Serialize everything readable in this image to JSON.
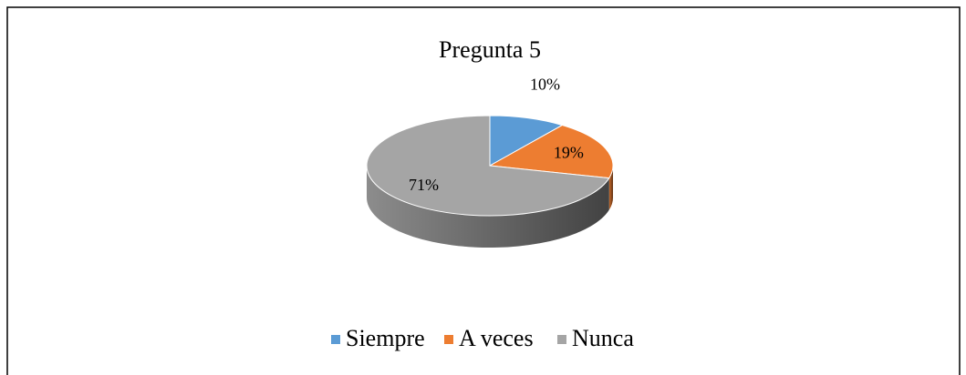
{
  "chart_data": {
    "type": "pie",
    "title": "Pregunta 5",
    "categories": [
      "Siempre",
      "A veces",
      "Nunca"
    ],
    "values": [
      10,
      19,
      71
    ],
    "value_labels": [
      "10%",
      "19%",
      "71%"
    ],
    "colors": [
      "#5b9bd5",
      "#ed7d31",
      "#a5a5a5"
    ],
    "legend": "bottom"
  }
}
